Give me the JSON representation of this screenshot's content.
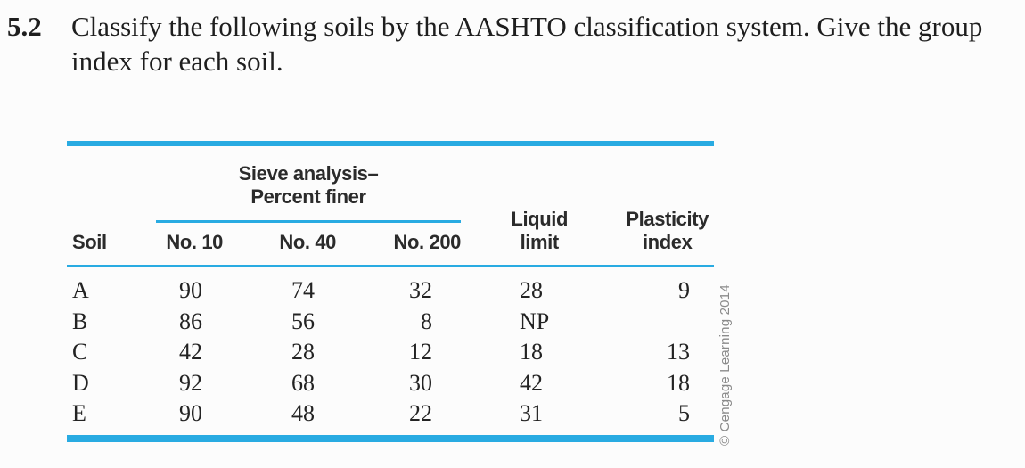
{
  "problem": {
    "number": "5.2",
    "line1": "Classify the following soils by the AASHTO classification system. Give the group",
    "line2": "index for each soil."
  },
  "table": {
    "spanner": {
      "line1": "Sieve analysis–",
      "line2": "Percent finer"
    },
    "headers": [
      {
        "lines": [
          "Soil"
        ]
      },
      {
        "lines": [
          "No. 10"
        ]
      },
      {
        "lines": [
          "No. 40"
        ]
      },
      {
        "lines": [
          "No. 200"
        ]
      },
      {
        "lines": [
          "Liquid",
          "limit"
        ]
      },
      {
        "lines": [
          "Plasticity",
          "index"
        ]
      }
    ],
    "rows": [
      [
        "A",
        "90",
        "74",
        "32",
        "28",
        "9"
      ],
      [
        "B",
        "86",
        "56",
        "8",
        "NP",
        ""
      ],
      [
        "C",
        "42",
        "28",
        "12",
        "18",
        "13"
      ],
      [
        "D",
        "92",
        "68",
        "30",
        "42",
        "18"
      ],
      [
        "E",
        "90",
        "48",
        "22",
        "31",
        "5"
      ]
    ]
  },
  "credit": "© Cengage Learning 2014",
  "colors": {
    "rule": "#29abe2",
    "header_text": "#2b2b2b",
    "body_text": "#232323",
    "credit_text": "#8a8a8a",
    "background": "#fcfcfc"
  }
}
